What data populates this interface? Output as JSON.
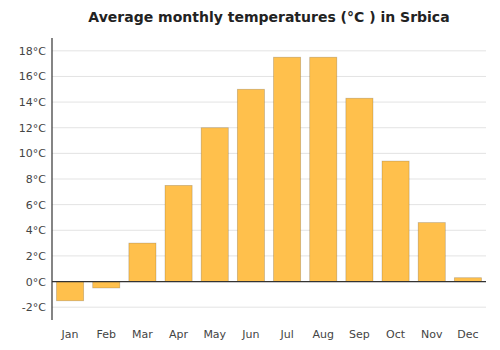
{
  "chart_data": {
    "type": "bar",
    "title": "Average monthly temperatures (°C ) in Srbica",
    "categories": [
      "Jan",
      "Feb",
      "Mar",
      "Apr",
      "May",
      "Jun",
      "Jul",
      "Aug",
      "Sep",
      "Oct",
      "Nov",
      "Dec"
    ],
    "values": [
      -1.5,
      -0.5,
      3.0,
      7.5,
      12.0,
      15.0,
      17.5,
      17.5,
      14.3,
      9.4,
      4.6,
      0.3
    ],
    "color": "#FFC04C",
    "ylim": [
      -3,
      19
    ],
    "yticks": [
      {
        "value": -2,
        "label": "-2°C"
      },
      {
        "value": 0,
        "label": "0°C"
      },
      {
        "value": 2,
        "label": "2°C"
      },
      {
        "value": 4,
        "label": "4°C"
      },
      {
        "value": 6,
        "label": "6°C"
      },
      {
        "value": 8,
        "label": "8°C"
      },
      {
        "value": 10,
        "label": "10°C"
      },
      {
        "value": 12,
        "label": "12°C"
      },
      {
        "value": 14,
        "label": "14°C"
      },
      {
        "value": 16,
        "label": "16°C"
      },
      {
        "value": 18,
        "label": "18°C"
      }
    ],
    "grid": true
  }
}
